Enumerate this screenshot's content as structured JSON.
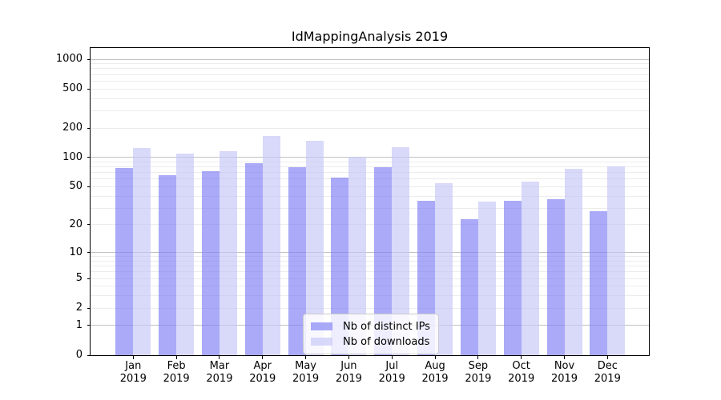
{
  "title": "IdMappingAnalysis 2019",
  "chart_data": {
    "type": "bar",
    "title": "IdMappingAnalysis 2019",
    "yscale": "log1p",
    "grid": true,
    "categories": [
      "Jan 2019",
      "Feb 2019",
      "Mar 2019",
      "Apr 2019",
      "May 2019",
      "Jun 2019",
      "Jul 2019",
      "Aug 2019",
      "Sep 2019",
      "Oct 2019",
      "Nov 2019",
      "Dec 2019"
    ],
    "months": [
      "Jan",
      "Feb",
      "Mar",
      "Apr",
      "May",
      "Jun",
      "Jul",
      "Aug",
      "Sep",
      "Oct",
      "Nov",
      "Dec"
    ],
    "year": "2019",
    "series": [
      {
        "name": "Nb of distinct IPs",
        "color": "rgba(124,124,244,0.65)",
        "values": [
          78,
          66,
          73,
          88,
          80,
          62,
          79,
          36,
          23,
          36,
          37,
          28
        ]
      },
      {
        "name": "Nb of downloads",
        "color": "rgba(197,197,247,0.65)",
        "values": [
          125,
          110,
          117,
          165,
          148,
          101,
          127,
          54,
          35,
          56,
          76,
          81
        ]
      }
    ],
    "y_tick_labels": [
      0,
      1,
      2,
      5,
      10,
      20,
      50,
      100,
      200,
      500,
      1000
    ],
    "y_major_gridlines": [
      1,
      10,
      100,
      1000
    ],
    "y_minor_gridline_decades": [
      1,
      10,
      100
    ],
    "ylim": [
      0,
      1300
    ],
    "legend_position": "lower center"
  },
  "colors": {
    "bar_distinct_ips": "rgba(124,124,244,0.65)",
    "bar_downloads": "rgba(197,197,247,0.65)",
    "grid_major": "#c2c2c2",
    "grid_minor": "#ececec",
    "axis": "#000000",
    "legend_border": "#cccccc"
  }
}
